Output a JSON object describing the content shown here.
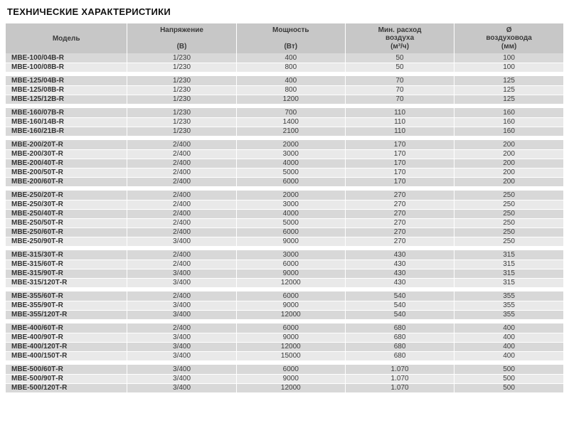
{
  "title": "ТЕХНИЧЕСКИЕ ХАРАКТЕРИСТИКИ",
  "colors": {
    "header_bg": "#c7c7c7",
    "row_dark": "#d8d8d8",
    "row_light": "#e9e9e9",
    "text": "#3c3c3c"
  },
  "table": {
    "columns": [
      {
        "name": "Модель",
        "unit": ""
      },
      {
        "name": "Напряжение",
        "unit": "(В)"
      },
      {
        "name": "Мощность",
        "unit": "(Вт)"
      },
      {
        "name": "Мин. расход\nвоздуха",
        "unit": "(м³/ч)"
      },
      {
        "name": "Ø\nвоздуховода",
        "unit": "(мм)"
      }
    ],
    "groups": [
      {
        "rows": [
          [
            "МВЕ-100/04В-R",
            "1/230",
            "400",
            "50",
            "100"
          ],
          [
            "МВЕ-100/08В-R",
            "1/230",
            "800",
            "50",
            "100"
          ]
        ]
      },
      {
        "rows": [
          [
            "МВЕ-125/04В-R",
            "1/230",
            "400",
            "70",
            "125"
          ],
          [
            "МВЕ-125/08В-R",
            "1/230",
            "800",
            "70",
            "125"
          ],
          [
            "МВЕ-125/12В-R",
            "1/230",
            "1200",
            "70",
            "125"
          ]
        ]
      },
      {
        "rows": [
          [
            "МВЕ-160/07В-R",
            "1/230",
            "700",
            "110",
            "160"
          ],
          [
            "МВЕ-160/14В-R",
            "1/230",
            "1400",
            "110",
            "160"
          ],
          [
            "МВЕ-160/21В-R",
            "1/230",
            "2100",
            "110",
            "160"
          ]
        ]
      },
      {
        "rows": [
          [
            "МВЕ-200/20Т-R",
            "2/400",
            "2000",
            "170",
            "200"
          ],
          [
            "МВЕ-200/30Т-R",
            "2/400",
            "3000",
            "170",
            "200"
          ],
          [
            "МВЕ-200/40Т-R",
            "2/400",
            "4000",
            "170",
            "200"
          ],
          [
            "МВЕ-200/50Т-R",
            "2/400",
            "5000",
            "170",
            "200"
          ],
          [
            "МВЕ-200/60Т-R",
            "2/400",
            "6000",
            "170",
            "200"
          ]
        ]
      },
      {
        "rows": [
          [
            "МВЕ-250/20Т-R",
            "2/400",
            "2000",
            "270",
            "250"
          ],
          [
            "МВЕ-250/30Т-R",
            "2/400",
            "3000",
            "270",
            "250"
          ],
          [
            "МВЕ-250/40Т-R",
            "2/400",
            "4000",
            "270",
            "250"
          ],
          [
            "МВЕ-250/50Т-R",
            "2/400",
            "5000",
            "270",
            "250"
          ],
          [
            "МВЕ-250/60Т-R",
            "2/400",
            "6000",
            "270",
            "250"
          ],
          [
            "МВЕ-250/90Т-R",
            "3/400",
            "9000",
            "270",
            "250"
          ]
        ]
      },
      {
        "rows": [
          [
            "МВЕ-315/30Т-R",
            "2/400",
            "3000",
            "430",
            "315"
          ],
          [
            "МВЕ-315/60Т-R",
            "2/400",
            "6000",
            "430",
            "315"
          ],
          [
            "МВЕ-315/90Т-R",
            "3/400",
            "9000",
            "430",
            "315"
          ],
          [
            "МВЕ-315/120Т-R",
            "3/400",
            "12000",
            "430",
            "315"
          ]
        ]
      },
      {
        "rows": [
          [
            "МВЕ-355/60Т-R",
            "2/400",
            "6000",
            "540",
            "355"
          ],
          [
            "МВЕ-355/90Т-R",
            "3/400",
            "9000",
            "540",
            "355"
          ],
          [
            "МВЕ-355/120Т-R",
            "3/400",
            "12000",
            "540",
            "355"
          ]
        ]
      },
      {
        "rows": [
          [
            "МВЕ-400/60Т-R",
            "2/400",
            "6000",
            "680",
            "400"
          ],
          [
            "МВЕ-400/90Т-R",
            "3/400",
            "9000",
            "680",
            "400"
          ],
          [
            "МВЕ-400/120Т-R",
            "3/400",
            "12000",
            "680",
            "400"
          ],
          [
            "МВЕ-400/150Т-R",
            "3/400",
            "15000",
            "680",
            "400"
          ]
        ]
      },
      {
        "rows": [
          [
            "МВЕ-500/60Т-R",
            "3/400",
            "6000",
            "1.070",
            "500"
          ],
          [
            "МВЕ-500/90Т-R",
            "3/400",
            "9000",
            "1.070",
            "500"
          ],
          [
            "МВЕ-500/120Т-R",
            "3/400",
            "12000",
            "1.070",
            "500"
          ]
        ]
      }
    ]
  }
}
